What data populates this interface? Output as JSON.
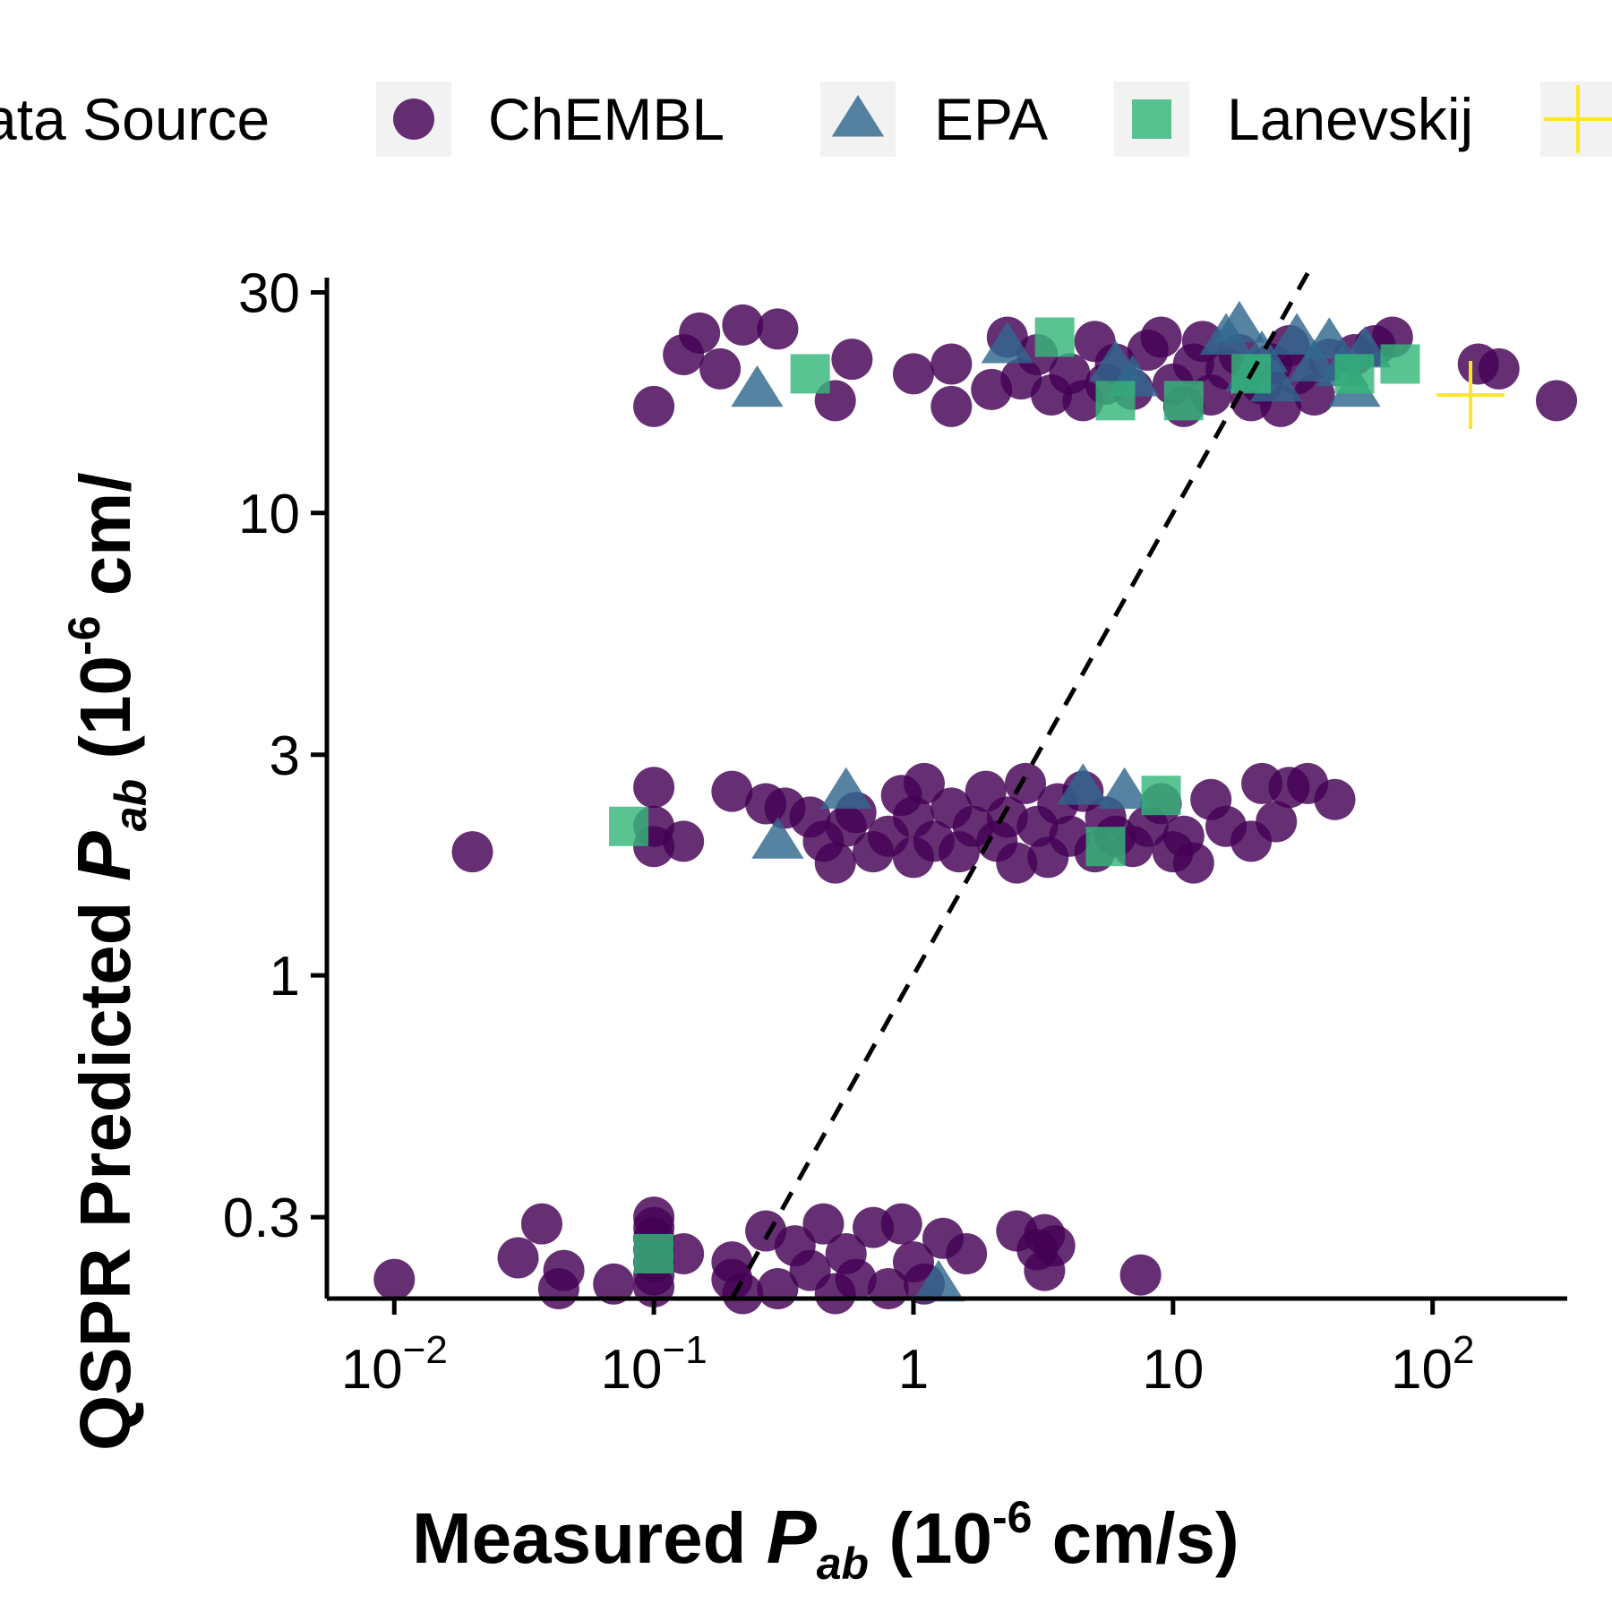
{
  "chart_data": {
    "type": "scatter",
    "x_scale": "log",
    "y_scale": "log",
    "xlim": [
      0.0055,
      330
    ],
    "ylim": [
      0.2,
      32
    ],
    "grid": false,
    "legend": {
      "position": "top",
      "title": "Data Source",
      "title_visible": "ata Source",
      "entries": [
        {
          "name": "ChEMBL",
          "shape": "circle",
          "color": "#440154"
        },
        {
          "name": "EPA",
          "shape": "triangle",
          "color": "#31688e"
        },
        {
          "name": "Lanevskij",
          "shape": "square",
          "color": "#35b779"
        },
        {
          "name": "",
          "shape": "cross",
          "color": "#fde725"
        }
      ]
    },
    "x_ticks": [
      {
        "value": 0.01,
        "base": "10",
        "exp": "−2"
      },
      {
        "value": 0.1,
        "base": "10",
        "exp": "−1"
      },
      {
        "value": 1,
        "base": "1",
        "exp": ""
      },
      {
        "value": 10,
        "base": "10",
        "exp": ""
      },
      {
        "value": 100,
        "base": "10",
        "exp": "2"
      }
    ],
    "y_ticks": [
      {
        "value": 0.3,
        "label": "0.3"
      },
      {
        "value": 1,
        "label": "1"
      },
      {
        "value": 3,
        "label": "3"
      },
      {
        "value": 10,
        "label": "10"
      },
      {
        "value": 30,
        "label": "30"
      }
    ],
    "xlabel": {
      "main": "Measured  ",
      "italic": "P",
      "sub": "ab",
      "rest1": " (10",
      "sup": "-6",
      "rest2": " cm/s)"
    },
    "ylabel": {
      "main": "QSPR Predicted  ",
      "italic": "P",
      "sub": "ab",
      "rest1": " (10",
      "sup": "-6",
      "rest2": " cm/"
    },
    "reference_line": {
      "style": "dashed",
      "color": "#000000",
      "slope_on_log": 1,
      "from": [
        0.2,
        0.2
      ],
      "to": [
        33,
        33
      ]
    },
    "series": [
      {
        "name": "ChEMBL",
        "shape": "circle",
        "color": "#440154",
        "points": [
          [
            0.1,
            17
          ],
          [
            0.13,
            22
          ],
          [
            0.15,
            24.5
          ],
          [
            0.18,
            20.5
          ],
          [
            0.22,
            25.5
          ],
          [
            0.3,
            25
          ],
          [
            0.5,
            17.5
          ],
          [
            0.58,
            21.5
          ],
          [
            1,
            20
          ],
          [
            1.4,
            17
          ],
          [
            1.4,
            21
          ],
          [
            2,
            18.5
          ],
          [
            2.3,
            24
          ],
          [
            2.6,
            19.5
          ],
          [
            3,
            22
          ],
          [
            3.4,
            18
          ],
          [
            4,
            20
          ],
          [
            4.5,
            17.5
          ],
          [
            5,
            23.5
          ],
          [
            5.5,
            19
          ],
          [
            6,
            21
          ],
          [
            7,
            18.5
          ],
          [
            8,
            22.5
          ],
          [
            9,
            24
          ],
          [
            10,
            19
          ],
          [
            11,
            17
          ],
          [
            12,
            21
          ],
          [
            13,
            23.5
          ],
          [
            14,
            18
          ],
          [
            16,
            20.5
          ],
          [
            18,
            22
          ],
          [
            20,
            17.5
          ],
          [
            22,
            19
          ],
          [
            24,
            21
          ],
          [
            26,
            17
          ],
          [
            28,
            23
          ],
          [
            30,
            20
          ],
          [
            35,
            18
          ],
          [
            40,
            21.5
          ],
          [
            50,
            22
          ],
          [
            60,
            23
          ],
          [
            70,
            24
          ],
          [
            150,
            21
          ],
          [
            180,
            20.5
          ],
          [
            300,
            17.5
          ],
          [
            0.02,
            1.85
          ],
          [
            0.1,
            2.55
          ],
          [
            0.1,
            2.1
          ],
          [
            0.1,
            1.9
          ],
          [
            0.13,
            1.95
          ],
          [
            0.2,
            2.5
          ],
          [
            0.27,
            2.35
          ],
          [
            0.32,
            2.3
          ],
          [
            0.4,
            2.2
          ],
          [
            0.45,
            1.95
          ],
          [
            0.5,
            1.75
          ],
          [
            0.55,
            2.1
          ],
          [
            0.6,
            2.25
          ],
          [
            0.7,
            1.85
          ],
          [
            0.8,
            2.0
          ],
          [
            0.9,
            2.45
          ],
          [
            1,
            1.8
          ],
          [
            1,
            2.2
          ],
          [
            1.1,
            2.6
          ],
          [
            1.2,
            1.95
          ],
          [
            1.4,
            2.3
          ],
          [
            1.5,
            1.85
          ],
          [
            1.7,
            2.1
          ],
          [
            1.9,
            2.5
          ],
          [
            2.1,
            1.95
          ],
          [
            2.3,
            2.2
          ],
          [
            2.5,
            1.75
          ],
          [
            2.7,
            2.6
          ],
          [
            3,
            2.1
          ],
          [
            3.3,
            1.8
          ],
          [
            3.6,
            2.35
          ],
          [
            4,
            2.0
          ],
          [
            4.5,
            2.5
          ],
          [
            5,
            1.85
          ],
          [
            5.5,
            2.2
          ],
          [
            6,
            2.0
          ],
          [
            7,
            1.9
          ],
          [
            8,
            2.1
          ],
          [
            9,
            2.35
          ],
          [
            10,
            1.85
          ],
          [
            11,
            2.0
          ],
          [
            12,
            1.75
          ],
          [
            14,
            2.4
          ],
          [
            16,
            2.1
          ],
          [
            20,
            1.95
          ],
          [
            22,
            2.6
          ],
          [
            25,
            2.15
          ],
          [
            28,
            2.55
          ],
          [
            33,
            2.6
          ],
          [
            42,
            2.4
          ],
          [
            0.01,
            0.22
          ],
          [
            0.03,
            0.245
          ],
          [
            0.037,
            0.29
          ],
          [
            0.043,
            0.21
          ],
          [
            0.045,
            0.23
          ],
          [
            0.07,
            0.215
          ],
          [
            0.1,
            0.3
          ],
          [
            0.1,
            0.285
          ],
          [
            0.1,
            0.27
          ],
          [
            0.1,
            0.255
          ],
          [
            0.1,
            0.24
          ],
          [
            0.1,
            0.225
          ],
          [
            0.1,
            0.212
          ],
          [
            0.13,
            0.25
          ],
          [
            0.2,
            0.24
          ],
          [
            0.2,
            0.22
          ],
          [
            0.22,
            0.205
          ],
          [
            0.27,
            0.28
          ],
          [
            0.3,
            0.21
          ],
          [
            0.35,
            0.26
          ],
          [
            0.4,
            0.23
          ],
          [
            0.45,
            0.29
          ],
          [
            0.5,
            0.205
          ],
          [
            0.55,
            0.25
          ],
          [
            0.6,
            0.22
          ],
          [
            0.7,
            0.285
          ],
          [
            0.8,
            0.21
          ],
          [
            0.9,
            0.29
          ],
          [
            1,
            0.24
          ],
          [
            1.1,
            0.215
          ],
          [
            1.3,
            0.27
          ],
          [
            1.6,
            0.25
          ],
          [
            2.5,
            0.28
          ],
          [
            3,
            0.255
          ],
          [
            3.2,
            0.275
          ],
          [
            3.2,
            0.23
          ],
          [
            3.5,
            0.26
          ],
          [
            7.5,
            0.225
          ]
        ]
      },
      {
        "name": "EPA",
        "shape": "triangle",
        "color": "#31688e",
        "points": [
          [
            0.25,
            18.5
          ],
          [
            2.3,
            23
          ],
          [
            6,
            21
          ],
          [
            7,
            19.5
          ],
          [
            16,
            24
          ],
          [
            18,
            25.5
          ],
          [
            20,
            20
          ],
          [
            22,
            22
          ],
          [
            25,
            19
          ],
          [
            30,
            24
          ],
          [
            35,
            21
          ],
          [
            40,
            23.5
          ],
          [
            45,
            20.5
          ],
          [
            50,
            18.5
          ],
          [
            55,
            22.5
          ],
          [
            0.3,
            1.95
          ],
          [
            0.55,
            2.5
          ],
          [
            4.5,
            2.55
          ],
          [
            6.5,
            2.5
          ],
          [
            1.25,
            0.215
          ]
        ]
      },
      {
        "name": "Lanevskij",
        "shape": "square",
        "color": "#35b779",
        "points": [
          [
            0.4,
            20
          ],
          [
            3.5,
            24
          ],
          [
            6,
            17.5
          ],
          [
            11,
            17.5
          ],
          [
            20,
            20
          ],
          [
            50,
            20
          ],
          [
            75,
            21
          ],
          [
            0.08,
            2.1
          ],
          [
            5.5,
            1.9
          ],
          [
            9,
            2.45
          ],
          [
            0.1,
            0.25
          ]
        ]
      },
      {
        "name": "",
        "shape": "cross",
        "color": "#fde725",
        "points": [
          [
            140,
            18
          ]
        ]
      }
    ]
  }
}
